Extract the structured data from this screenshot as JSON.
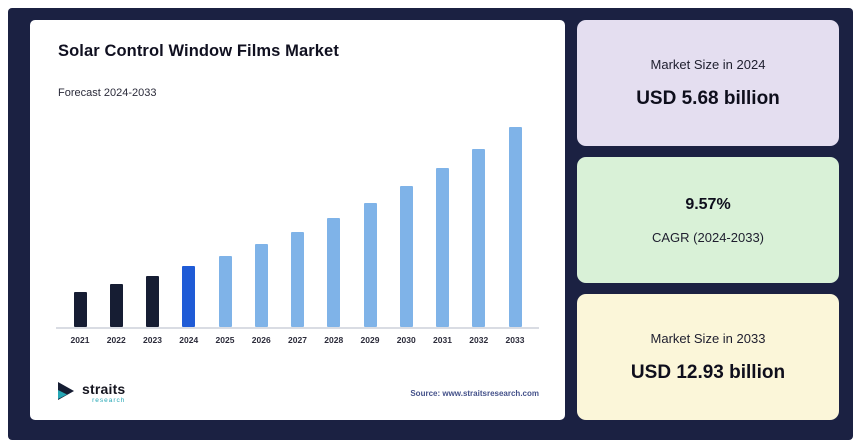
{
  "panel_background": "#1b2142",
  "chart_card": {
    "title": "Solar Control Window Films Market",
    "subtitle": "Forecast 2024-2033",
    "brand_name": "straits",
    "brand_sub": "research",
    "source": "Source: www.straitsresearch.com"
  },
  "chart_data": {
    "type": "bar",
    "title": "Solar Control Window Films Market",
    "subtitle": "Forecast 2024-2033",
    "categories": [
      "2021",
      "2022",
      "2023",
      "2024",
      "2025",
      "2026",
      "2027",
      "2028",
      "2029",
      "2030",
      "2031",
      "2032",
      "2033"
    ],
    "values": [
      4.32,
      4.73,
      5.18,
      5.68,
      6.22,
      6.82,
      7.47,
      8.18,
      8.97,
      9.83,
      10.77,
      11.8,
      12.93
    ],
    "unit": "USD billion",
    "ylabel": "",
    "xlabel": "",
    "ylim": [
      0,
      14
    ],
    "grid": false,
    "legend": false,
    "bar_colors": [
      "#161d33",
      "#161d33",
      "#161d33",
      "#1f5bd6",
      "#7fb3e8",
      "#7fb3e8",
      "#7fb3e8",
      "#7fb3e8",
      "#7fb3e8",
      "#7fb3e8",
      "#7fb3e8",
      "#7fb3e8",
      "#7fb3e8"
    ]
  },
  "stat_cards": [
    {
      "label": "Market Size in 2024",
      "value": "USD 5.68 billion",
      "bg": "#e4def0",
      "order": "label-first"
    },
    {
      "value": "9.57%",
      "label": "CAGR (2024-2033)",
      "bg": "#d9f1d7",
      "order": "value-first"
    },
    {
      "label": "Market Size in 2033",
      "value": "USD 12.93 billion",
      "bg": "#fbf6d9",
      "order": "label-first"
    }
  ],
  "colors": {
    "accent_teal": "#26a7b5",
    "accent_navy": "#161d33",
    "highlight_blue": "#1f5bd6",
    "series_blue": "#7fb3e8"
  }
}
